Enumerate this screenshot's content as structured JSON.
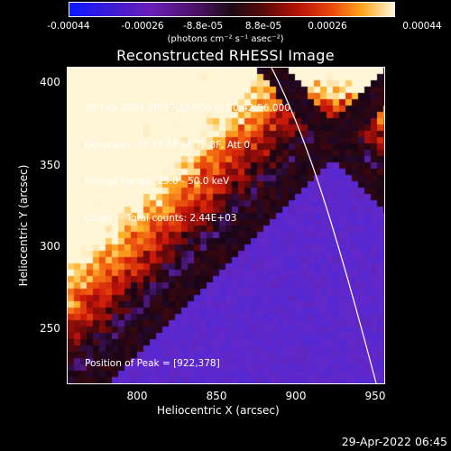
{
  "colorbar": {
    "ticks": [
      "-0.00044",
      "-0.00026",
      "-8.8e-05",
      "8.8e-05",
      "0.00026",
      "0.00044"
    ],
    "units": "(photons cm⁻² s⁻¹ asec⁻²)"
  },
  "chart_data": {
    "type": "heatmap",
    "title": "Reconstructed RHESSI Image",
    "xlabel": "Heliocentric X (arcsec)",
    "ylabel": "Heliocentric Y (arcsec)",
    "xlim": [
      760,
      950
    ],
    "ylim": [
      215,
      405
    ],
    "x_ticks": [
      "800",
      "850",
      "900",
      "950"
    ],
    "y_ticks": [
      "250",
      "300",
      "350",
      "400"
    ],
    "value_range": [
      -0.00044,
      0.00044
    ],
    "info_lines": [
      "25-Feb-2003 20:39:32.000 to 20:42:56.000",
      "Detectors: 3F 4F 5F 6F 7F 8F, Att 0",
      "Energy Range: 25.0 - 50.0 keV",
      "Clean     Total counts: 2.44E+03"
    ],
    "peak_label": "Position of Peak = [922,378]",
    "peak": [
      922,
      378
    ]
  },
  "timestamp": "29-Apr-2022 06:45"
}
